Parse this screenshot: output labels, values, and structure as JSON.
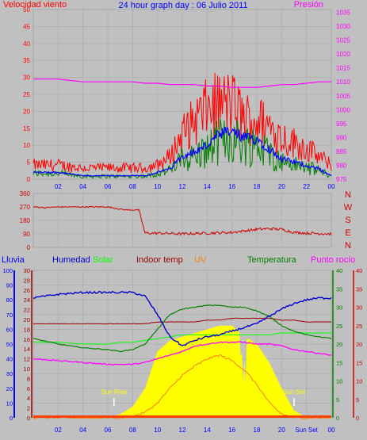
{
  "title": "24 hour graph day : 06 Julio 2011",
  "colors": {
    "background": "#c0c0c0",
    "plot_background": "#c0c0c0",
    "grid": "#a8a8a8",
    "wind": "#ff0000",
    "wind_avg": "#0000ff",
    "wind_gust_green": "#008000",
    "pressure": "#ff00ff",
    "direction": "#cc0000",
    "rain": "#0000ff",
    "humidity": "#0000cc",
    "solar": "#00ff00",
    "indoor_temp": "#990000",
    "uv": "#ff8000",
    "temperature": "#008000",
    "dew_point": "#ff00ff",
    "solar_fill": "#ffff00",
    "sun_marker": "#ffff00"
  },
  "chart_data": [
    {
      "type": "line",
      "name": "wind-pressure",
      "left_label": "Velocidad viento",
      "right_label": "Presión",
      "x_ticks": [
        "02",
        "04",
        "06",
        "08",
        "10",
        "12",
        "14",
        "16",
        "18",
        "20",
        "22",
        "00"
      ],
      "y_left_ticks": [
        "0",
        "5",
        "10",
        "15",
        "20",
        "25",
        "30",
        "35",
        "40",
        "45",
        "50"
      ],
      "y_left_range": [
        0,
        50
      ],
      "y_right_ticks": [
        "975",
        "980",
        "985",
        "990",
        "995",
        "1000",
        "1005",
        "1010",
        "1015",
        "1020",
        "1025",
        "1030",
        "1035"
      ],
      "y_right_range": [
        975,
        1036
      ],
      "hours": [
        0,
        2,
        4,
        6,
        8,
        9,
        10,
        11,
        12,
        13,
        14,
        15,
        16,
        17,
        18,
        19,
        20,
        21,
        22,
        23,
        24
      ],
      "wind_avg": [
        2,
        2,
        1,
        1,
        1,
        1,
        2,
        3,
        7,
        8,
        10,
        13,
        14,
        12,
        12,
        9,
        6,
        5,
        4,
        3,
        1
      ],
      "wind_gust": [
        5,
        5,
        4,
        4,
        4,
        4,
        5,
        8,
        16,
        21,
        25,
        27,
        27,
        22,
        21,
        19,
        15,
        13,
        11,
        8,
        5
      ],
      "pressure": [
        1011,
        1011,
        1010,
        1010,
        1010,
        1009.5,
        1009.5,
        1009,
        1009,
        1009,
        1008.5,
        1008.5,
        1008,
        1008,
        1008,
        1008.5,
        1009,
        1009,
        1009.5,
        1010,
        1010
      ]
    },
    {
      "type": "line",
      "name": "wind-direction",
      "y_ticks": [
        "360",
        "270",
        "180",
        "90",
        "0"
      ],
      "y_range": [
        0,
        360
      ],
      "compass_labels": [
        "N",
        "W",
        "S",
        "E",
        "N"
      ],
      "hours": [
        0,
        1,
        2,
        3,
        4,
        5,
        6,
        7,
        7.5,
        8.5,
        9,
        10,
        12,
        14,
        16,
        18,
        19,
        20,
        21,
        22,
        24
      ],
      "direction": [
        270,
        265,
        270,
        270,
        270,
        270,
        270,
        255,
        250,
        250,
        95,
        95,
        90,
        95,
        100,
        120,
        125,
        120,
        100,
        95,
        90
      ]
    },
    {
      "type": "line",
      "name": "temperature-humidity",
      "labels": [
        "Lluvia",
        "Humedad",
        "Solar",
        "Indoor temp",
        "UV",
        "Temperatura",
        "Punto rocío"
      ],
      "y_left1_ticks": [
        "0",
        "10",
        "20",
        "30",
        "40",
        "50",
        "60",
        "70",
        "80",
        "90",
        "100"
      ],
      "y_left2_ticks": [
        "0",
        "2",
        "4",
        "6",
        "8",
        "10",
        "12",
        "14",
        "16",
        "18",
        "20",
        "22",
        "24",
        "26",
        "28",
        "30"
      ],
      "y_right1_ticks": [
        "0",
        "5",
        "10",
        "15",
        "20",
        "25",
        "30",
        "35",
        "40"
      ],
      "y_right2_ticks": [
        "0",
        "5",
        "10",
        "15",
        "20",
        "25",
        "30",
        "35",
        "40"
      ],
      "temp_range": [
        0,
        40
      ],
      "x_ticks": [
        "02",
        "04",
        "06",
        "08",
        "10",
        "12",
        "14",
        "16",
        "18",
        "20",
        "Sun Set",
        "00"
      ],
      "sun_rise_label": "Sun Rise",
      "sun_set_label": "Sun Set",
      "sun_rise_hour": 6.5,
      "sun_set_hour": 21.0,
      "hours": [
        0,
        2,
        4,
        6,
        7,
        8,
        9,
        10,
        11,
        12,
        13,
        14,
        15,
        16,
        17,
        18,
        19,
        20,
        21,
        22,
        23,
        24
      ],
      "humidity": [
        32.5,
        33.5,
        34,
        34,
        34,
        34,
        33,
        28,
        22,
        19.5,
        21,
        22,
        22.5,
        23.5,
        24.5,
        25.5,
        27.5,
        29.5,
        31,
        32,
        32.5,
        32.5
      ],
      "indoor_temp": [
        25.5,
        25.5,
        25.5,
        25.5,
        25.5,
        25.5,
        25.5,
        26,
        26,
        26,
        26,
        26.5,
        26.5,
        27,
        27,
        27,
        27,
        26.5,
        26.5,
        26,
        26,
        26
      ],
      "solar": [
        20.5,
        20.5,
        20,
        20,
        20.5,
        20.5,
        21,
        21.5,
        22,
        22.5,
        22.5,
        22.5,
        22.5,
        22.5,
        22.5,
        22.5,
        22.5,
        23,
        23,
        23,
        23,
        23
      ],
      "temperature": [
        21.5,
        20,
        19,
        18.5,
        18,
        18.5,
        20,
        24,
        28,
        29.5,
        30,
        30.5,
        30.5,
        30,
        30,
        29,
        27.5,
        25,
        23.5,
        22.5,
        22,
        21.5
      ],
      "dew_point": [
        16,
        15.5,
        15,
        14.5,
        14.5,
        14.5,
        15,
        16,
        17,
        18,
        19.5,
        20,
        20.5,
        20.5,
        20.5,
        20,
        20,
        19.5,
        18.5,
        18,
        17.5,
        17
      ],
      "solar_fill": [
        0,
        0,
        0,
        0,
        1,
        3,
        8,
        18,
        21,
        22,
        23,
        24,
        25,
        25,
        22,
        20,
        15,
        8,
        2,
        0,
        0,
        0
      ],
      "uv": [
        0,
        0,
        0,
        0,
        0,
        0.3,
        1.5,
        4,
        8,
        11.5,
        14,
        16,
        17,
        15.5,
        13,
        9,
        4,
        1,
        0,
        0,
        0,
        0
      ],
      "rain": [
        0,
        0,
        0,
        0,
        0,
        0,
        0,
        0,
        0,
        0,
        0,
        0,
        0,
        0,
        0,
        0,
        0,
        0,
        0,
        0,
        0,
        0
      ]
    }
  ]
}
